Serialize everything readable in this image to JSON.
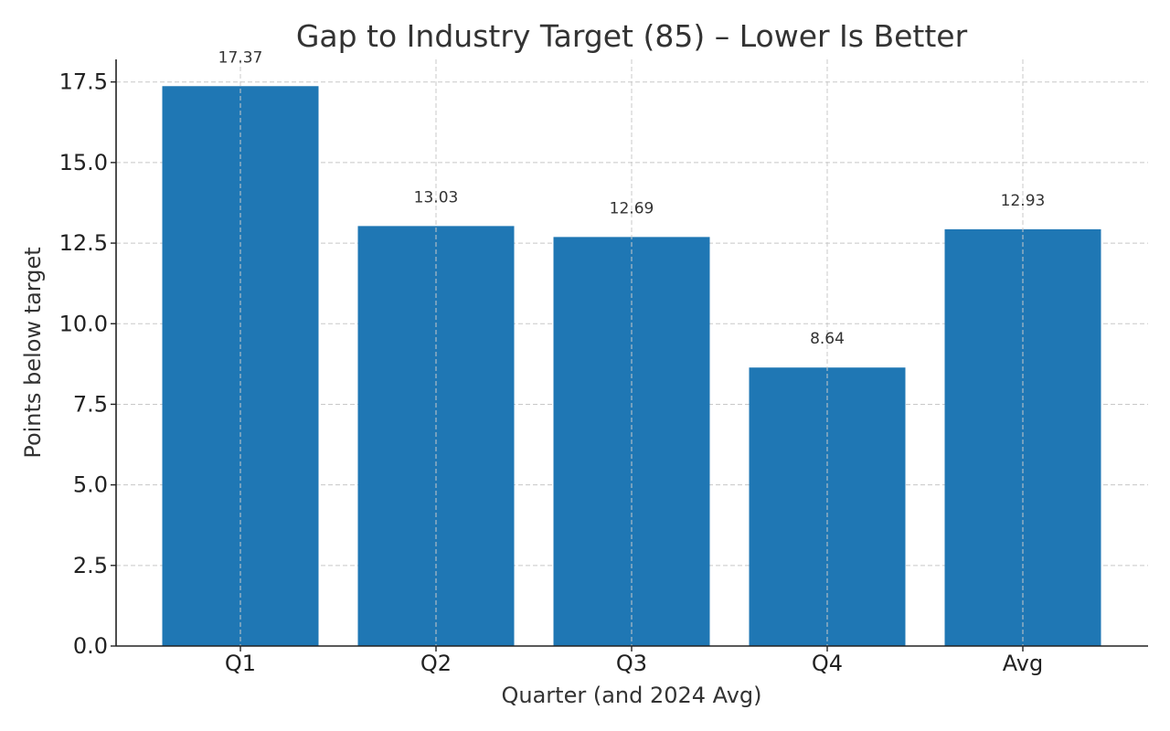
{
  "chart_data": {
    "type": "bar",
    "title": "Gap to Industry Target (85) – Lower Is Better",
    "xlabel": "Quarter (and 2024 Avg)",
    "ylabel": "Points below target",
    "categories": [
      "Q1",
      "Q2",
      "Q3",
      "Q4",
      "Avg"
    ],
    "values": [
      17.37,
      13.03,
      12.69,
      8.64,
      12.93
    ],
    "data_labels": [
      "17.37",
      "13.03",
      "12.69",
      "8.64",
      "12.93"
    ],
    "ylim": [
      0,
      18.2
    ],
    "yticks": [
      0,
      2.5,
      5,
      7.5,
      10,
      12.5,
      15,
      17.5
    ],
    "ytick_labels": [
      "0.0",
      "2.5",
      "5.0",
      "7.5",
      "10.0",
      "12.5",
      "15.0",
      "17.5"
    ],
    "grid": true,
    "bar_color": "#1f77b4"
  }
}
